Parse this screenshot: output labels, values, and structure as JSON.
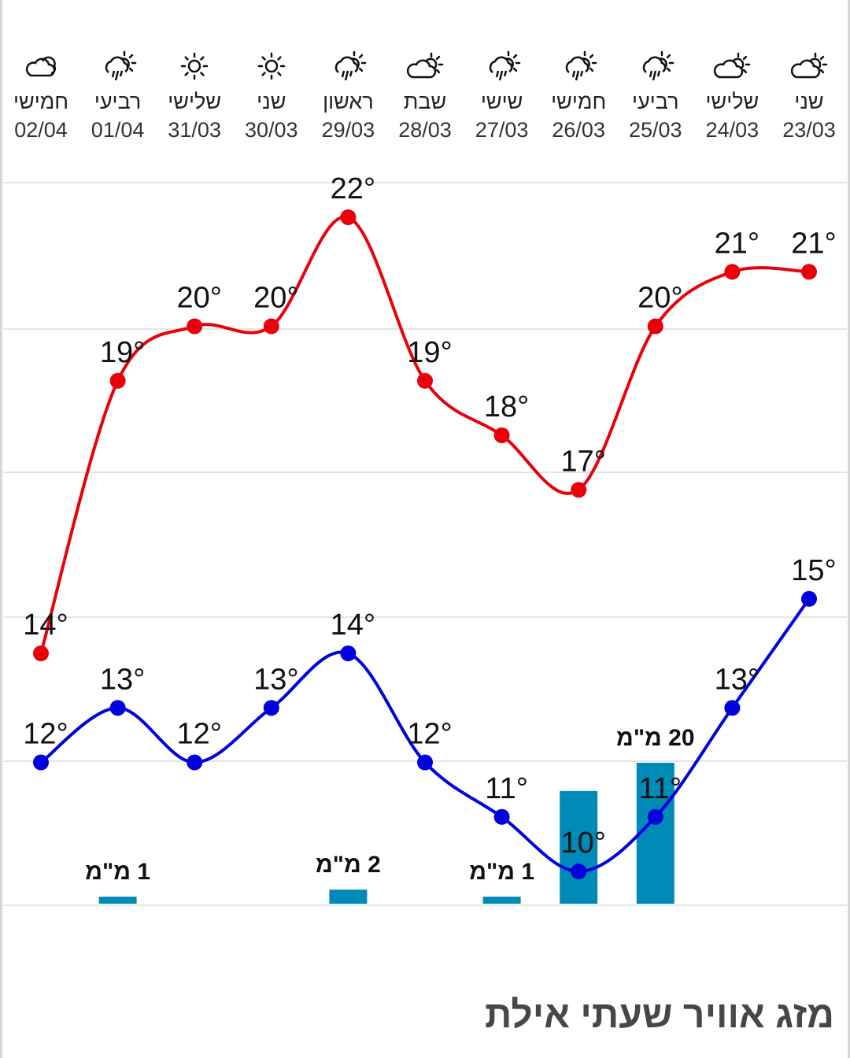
{
  "title": "מזג אוויר שעתי אילת",
  "colors": {
    "high": "#e8000b",
    "low": "#0000dd",
    "precip": "#008ab8",
    "grid": "#e4e4e4"
  },
  "chart_data": {
    "type": "line",
    "title": "מזג אוויר שעתי אילת",
    "x_order": "right-to-left",
    "categories": [
      "23/03",
      "24/03",
      "25/03",
      "26/03",
      "27/03",
      "28/03",
      "29/03",
      "30/03",
      "31/03",
      "01/04",
      "02/04"
    ],
    "day_names": [
      "שני",
      "שלישי",
      "רביעי",
      "חמישי",
      "שישי",
      "שבת",
      "ראשון",
      "שני",
      "שלישי",
      "רביעי",
      "חמישי"
    ],
    "icons": [
      "partly-cloudy-icon",
      "partly-cloudy-icon",
      "rain-sun-icon",
      "rain-sun-icon",
      "rain-sun-icon",
      "partly-cloudy-icon",
      "rain-sun-icon",
      "sunny-icon",
      "sunny-icon",
      "rain-sun-icon",
      "cloudy-icon"
    ],
    "unit_suffix": "°",
    "series": [
      {
        "name": "high",
        "values": [
          21,
          21,
          20,
          17,
          18,
          19,
          22,
          20,
          20,
          19,
          14
        ]
      },
      {
        "name": "low",
        "values": [
          15,
          13,
          11,
          10,
          11,
          12,
          14,
          13,
          12,
          13,
          12
        ]
      }
    ],
    "precip": {
      "values": [
        0,
        0,
        20,
        16,
        1,
        0,
        2,
        0,
        0,
        1,
        0
      ],
      "labels": [
        "",
        "",
        "20 מ\"מ",
        "",
        "1 מ\"מ",
        "",
        "2 מ\"מ",
        "",
        "",
        "1 מ\"מ",
        ""
      ]
    }
  }
}
